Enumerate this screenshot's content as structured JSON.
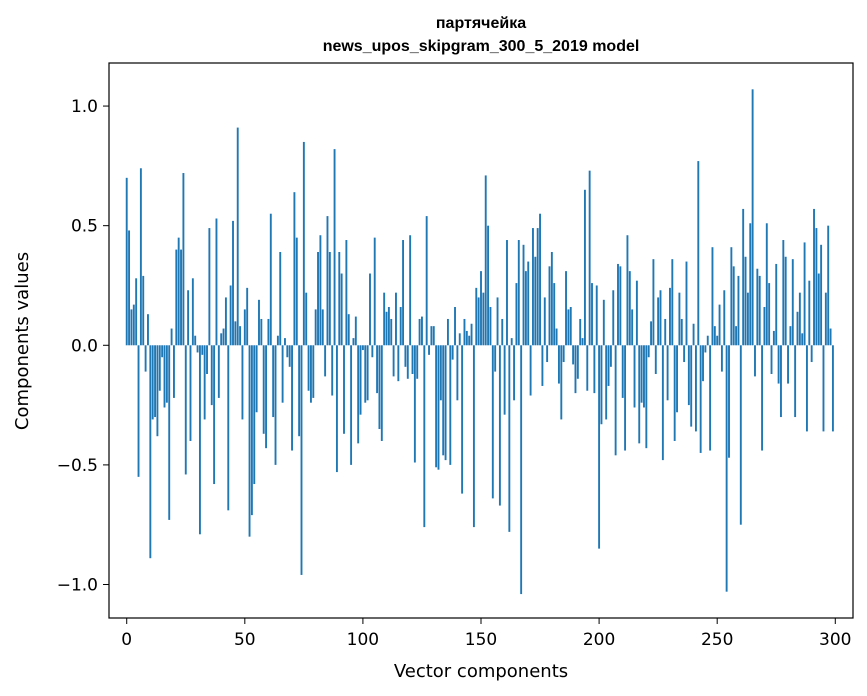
{
  "chart_data": {
    "type": "bar",
    "title": "партячейка",
    "subtitle": "news_upos_skipgram_300_5_2019 model",
    "xlabel": "Vector components",
    "ylabel": "Components values",
    "xlim": [
      -7.5,
      307.5
    ],
    "ylim": [
      -1.14,
      1.18
    ],
    "xticks": [
      0,
      50,
      100,
      150,
      200,
      250,
      300
    ],
    "xtick_labels": [
      "0",
      "50",
      "100",
      "150",
      "200",
      "250",
      "300"
    ],
    "yticks": [
      -1.0,
      -0.5,
      0.0,
      0.5,
      1.0
    ],
    "ytick_labels": [
      "−1.0",
      "−0.5",
      "0.0",
      "0.5",
      "1.0"
    ],
    "grid": false,
    "bar_color": "#1f77b4",
    "values": [
      0.7,
      0.48,
      0.15,
      0.17,
      0.28,
      -0.55,
      0.74,
      0.29,
      -0.11,
      0.13,
      -0.89,
      -0.31,
      -0.3,
      -0.38,
      -0.19,
      -0.05,
      -0.26,
      -0.24,
      -0.73,
      0.07,
      -0.22,
      0.4,
      0.45,
      0.4,
      0.72,
      -0.54,
      0.23,
      -0.4,
      0.28,
      0.04,
      -0.03,
      -0.79,
      -0.04,
      -0.31,
      -0.12,
      0.49,
      -0.25,
      -0.58,
      0.53,
      -0.22,
      0.05,
      0.07,
      0.2,
      -0.69,
      0.25,
      0.52,
      0.1,
      0.91,
      0.08,
      -0.31,
      0.15,
      0.24,
      -0.8,
      -0.71,
      -0.58,
      -0.28,
      0.19,
      0.11,
      -0.37,
      -0.43,
      0.11,
      0.55,
      -0.3,
      -0.5,
      0.04,
      0.39,
      -0.24,
      0.03,
      -0.05,
      -0.09,
      -0.44,
      0.64,
      0.45,
      -0.38,
      -0.96,
      0.85,
      0.22,
      -0.19,
      -0.24,
      -0.22,
      0.15,
      0.39,
      0.46,
      0.15,
      -0.13,
      0.54,
      0.39,
      -0.21,
      0.82,
      -0.53,
      0.39,
      0.3,
      -0.37,
      0.44,
      0.13,
      -0.5,
      0.03,
      0.12,
      -0.41,
      -0.29,
      -0.02,
      -0.24,
      -0.23,
      0.3,
      -0.05,
      0.45,
      -0.2,
      -0.35,
      -0.4,
      0.22,
      0.14,
      0.16,
      0.11,
      -0.13,
      0.22,
      -0.15,
      0.16,
      0.44,
      -0.09,
      -0.14,
      0.46,
      -0.12,
      -0.49,
      -0.14,
      0.11,
      0.12,
      -0.76,
      0.54,
      -0.04,
      0.08,
      0.08,
      -0.51,
      -0.52,
      -0.23,
      -0.46,
      -0.48,
      0.11,
      -0.5,
      -0.06,
      0.16,
      -0.23,
      0.05,
      -0.62,
      0.11,
      0.06,
      0.04,
      0.09,
      -0.76,
      0.24,
      0.2,
      0.31,
      0.22,
      0.71,
      0.5,
      0.16,
      -0.64,
      -0.11,
      0.2,
      -0.67,
      0.11,
      -0.29,
      0.44,
      -0.78,
      0.03,
      -0.23,
      0.26,
      0.44,
      -1.04,
      0.42,
      0.31,
      0.35,
      -0.21,
      0.49,
      0.37,
      0.49,
      0.55,
      -0.17,
      0.2,
      -0.07,
      0.33,
      0.39,
      0.26,
      0.07,
      -0.16,
      -0.31,
      -0.07,
      0.31,
      0.15,
      0.16,
      -0.08,
      -0.2,
      -0.14,
      0.11,
      0.03,
      0.65,
      -0.19,
      0.73,
      0.26,
      -0.2,
      0.25,
      -0.85,
      -0.33,
      0.19,
      -0.31,
      -0.17,
      -0.09,
      0.23,
      -0.46,
      0.34,
      0.33,
      -0.22,
      -0.44,
      0.46,
      0.31,
      0.15,
      -0.26,
      0.27,
      -0.41,
      -0.24,
      -0.26,
      -0.43,
      -0.05,
      0.1,
      0.36,
      -0.12,
      0.2,
      0.23,
      -0.48,
      0.11,
      -0.23,
      0.24,
      0.36,
      -0.4,
      -0.28,
      0.22,
      0.11,
      -0.07,
      0.35,
      -0.25,
      -0.34,
      0.09,
      -0.36,
      0.77,
      -0.45,
      -0.15,
      -0.03,
      0.04,
      -0.44,
      0.41,
      0.08,
      0.04,
      0.17,
      -0.11,
      0.23,
      -1.03,
      -0.47,
      0.41,
      0.33,
      0.08,
      0.29,
      -0.75,
      0.57,
      0.37,
      0.22,
      0.51,
      1.07,
      -0.13,
      0.32,
      0.29,
      -0.44,
      0.16,
      0.51,
      0.26,
      -0.12,
      0.06,
      0.34,
      -0.16,
      -0.3,
      0.44,
      0.37,
      -0.16,
      0.08,
      0.36,
      -0.3,
      0.14,
      0.22,
      0.05,
      0.43,
      -0.36,
      0.27,
      -0.07,
      0.57,
      0.49,
      0.3,
      0.42,
      -0.36,
      0.22,
      0.5,
      0.07,
      -0.36
    ]
  }
}
